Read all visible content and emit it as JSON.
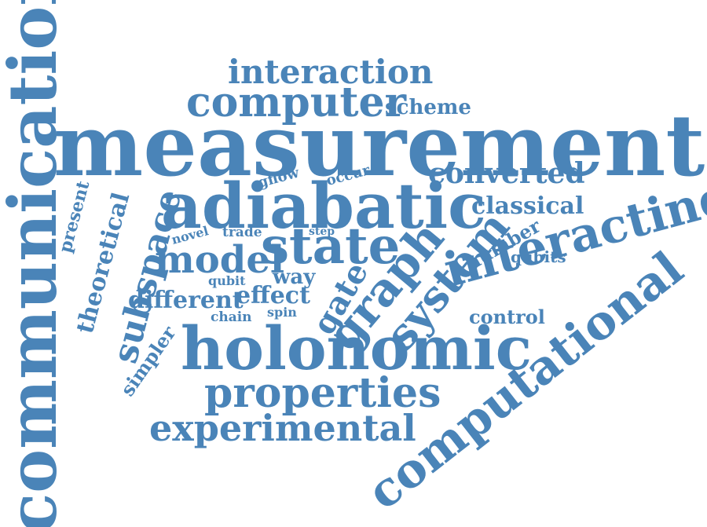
{
  "colors": {
    "word": "#4a84b8",
    "background": "#ffffff"
  },
  "words": {
    "communication": "communication",
    "measurement": "measurement",
    "adiabatic": "adiabatic",
    "holonomic": "holonomic",
    "interaction": "interaction",
    "computer": "computer",
    "scheme": "scheme",
    "converted": "converted",
    "classical": "classical",
    "gflow": "gflow",
    "occur": "occur",
    "present": "present",
    "theoretical": "theoretical",
    "subspace": "subspace",
    "novel": "novel",
    "trade": "trade",
    "step": "step",
    "model": "model",
    "state": "state",
    "graph": "graph",
    "system": "system",
    "number": "number",
    "qubits": "qubits",
    "interacting": "interacting",
    "qubit": "qubit",
    "way": "way",
    "gate": "gate",
    "different": "different",
    "effect": "effect",
    "chain": "chain",
    "spin": "spin",
    "control": "control",
    "simpler": "simpler",
    "properties": "properties",
    "experimental": "experimental",
    "computational": "computational"
  }
}
